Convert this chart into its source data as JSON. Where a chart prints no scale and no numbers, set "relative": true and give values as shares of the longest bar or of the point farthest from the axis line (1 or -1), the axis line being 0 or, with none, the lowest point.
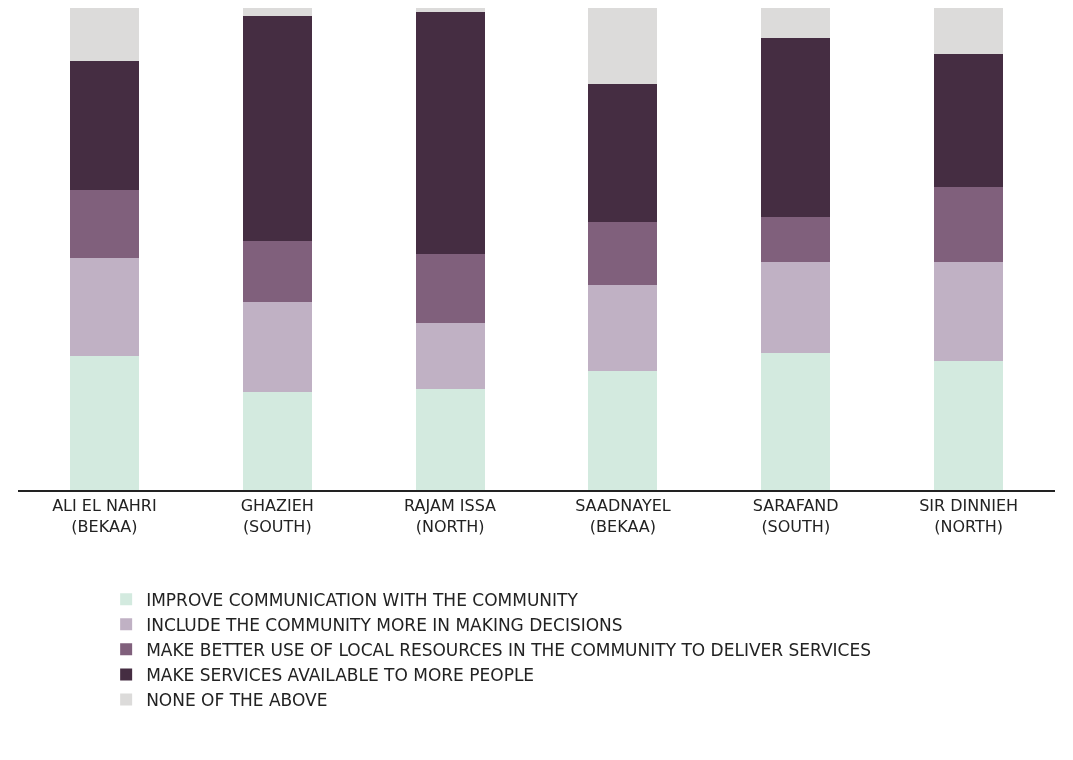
{
  "chart_data": {
    "type": "bar",
    "stacked": true,
    "relative": true,
    "legend": "bottom",
    "categories": [
      "ALI EL NAHRI\n(BEKAA)",
      "GHAZIEH\n(SOUTH)",
      "RAJAM ISSA\n(NORTH)",
      "SAADNAYEL\n(BEKAA)",
      "SARAFAND\n(SOUTH)",
      "SIR DINNIEH\n(NORTH)"
    ],
    "series": [
      {
        "name": "IMPROVE COMMUNICATION WITH THE COMMUNITY",
        "color": "#d3eadf",
        "values": [
          0.278,
          0.203,
          0.21,
          0.247,
          0.284,
          0.268
        ]
      },
      {
        "name": "INCLUDE THE COMMUNITY MORE IN MAKING DECISIONS",
        "color": "#c0b1c4",
        "values": [
          0.203,
          0.187,
          0.137,
          0.178,
          0.189,
          0.205
        ]
      },
      {
        "name": "MAKE BETTER USE OF LOCAL RESOURCES IN THE COMMUNITY TO DELIVER SERVICES",
        "color": "#80607c",
        "values": [
          0.141,
          0.127,
          0.143,
          0.131,
          0.093,
          0.156
        ]
      },
      {
        "name": "MAKE SERVICES AVAILABLE TO MORE PEOPLE",
        "color": "#452d42",
        "values": [
          0.268,
          0.466,
          0.502,
          0.286,
          0.372,
          0.276
        ]
      },
      {
        "name": "NONE OF THE ABOVE",
        "color": "#dcdbda",
        "values": [
          0.11,
          0.017,
          0.008,
          0.158,
          0.062,
          0.095
        ]
      }
    ]
  }
}
